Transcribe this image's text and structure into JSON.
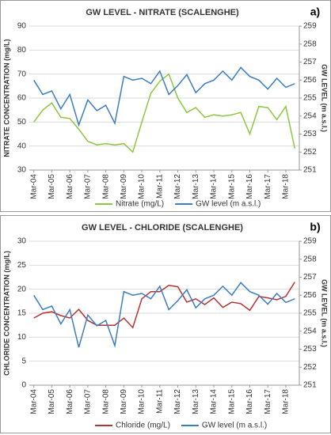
{
  "chart_data": [
    {
      "type": "line",
      "title": "GW  LEVEL - NITRATE (SCALENGHE)",
      "panel_label": "a)",
      "y_label": "NITRATE CONCENTRATION (mg/L)",
      "y2_label": "GW LEVEL (m a.s.l.)",
      "categories": [
        "Mar-04",
        null,
        "Mar-05",
        null,
        "Mar-06",
        null,
        "Mar-07",
        null,
        "Mar-08",
        null,
        "Mar-09",
        null,
        "Mar-10",
        null,
        "Mar-11",
        null,
        "Mar-12",
        null,
        "Mar-13",
        null,
        "Mar-14",
        null,
        "Mar-15",
        null,
        "Mar-16",
        null,
        "Mar-17",
        null,
        "Mar-18",
        null
      ],
      "ylim": [
        30,
        90
      ],
      "yticks": [
        30,
        40,
        50,
        60,
        70,
        80,
        90
      ],
      "y2lim": [
        251,
        259
      ],
      "y2ticks": [
        251,
        252,
        253,
        254,
        255,
        256,
        257,
        258,
        259
      ],
      "grid": true,
      "legend": "bottom",
      "series": [
        {
          "name": "Nitrate (mg/L)",
          "color": "#8dc63f",
          "values": [
            50,
            55,
            58,
            52,
            51.5,
            47,
            42,
            40.5,
            41,
            40.5,
            41,
            37.5,
            50,
            62,
            67,
            70,
            60,
            54,
            56,
            52,
            53,
            52.5,
            53,
            54,
            45,
            56.5,
            56,
            51,
            56.5,
            39
          ]
        },
        {
          "name": "GW level (m a.s.l.)",
          "color": "#3b7dc0",
          "axis": "y2",
          "values": [
            256.0,
            255.2,
            255.4,
            254.4,
            255.2,
            253.5,
            254.9,
            254.3,
            254.6,
            253.6,
            256.2,
            256.0,
            256.1,
            255.8,
            256.5,
            255.2,
            255.7,
            256.3,
            255.3,
            255.8,
            256.0,
            256.5,
            256.0,
            256.7,
            256.2,
            256.0,
            255.5,
            256.1,
            255.6,
            255.8
          ]
        }
      ]
    },
    {
      "type": "line",
      "title": "GW  LEVEL - CHLORIDE (SCALENGHE)",
      "panel_label": "b)",
      "y_label": "CHLORIDE CONCENTRATION (mg/L)",
      "y2_label": "GW LEVEL (m a.s.l.)",
      "categories": [
        "Mar-04",
        null,
        "Mar-05",
        null,
        "Mar-06",
        null,
        "Mar-07",
        null,
        "Mar-08",
        null,
        "Mar-09",
        null,
        "Mar-10",
        null,
        "Mar-11",
        null,
        "Mar-12",
        null,
        "Mar-13",
        null,
        "Mar-14",
        null,
        "Mar-15",
        null,
        "Mar-16",
        null,
        "Mar-17",
        null,
        "Mar-18",
        null
      ],
      "ylim": [
        0,
        30
      ],
      "yticks": [
        0,
        5,
        10,
        15,
        20,
        25,
        30
      ],
      "y2lim": [
        251,
        259
      ],
      "y2ticks": [
        251,
        252,
        253,
        254,
        255,
        256,
        257,
        258,
        259
      ],
      "grid": true,
      "legend": "bottom",
      "series": [
        {
          "name": "Chloride (mg/L)",
          "color": "#b83232",
          "values": [
            14,
            15,
            15.3,
            14.5,
            14,
            15.8,
            13.5,
            12.5,
            12.5,
            12.5,
            14,
            12,
            18,
            19.5,
            19.5,
            20.8,
            20.5,
            17.3,
            18,
            16.8,
            18.2,
            16.2,
            17.3,
            17,
            15.6,
            18.5,
            18.2,
            17.8,
            18.5,
            21.5
          ]
        },
        {
          "name": "GW level (m a.s.l.)",
          "color": "#3b7dc0",
          "axis": "y2",
          "values": [
            256.0,
            255.2,
            255.4,
            254.4,
            255.2,
            253.1,
            254.9,
            254.3,
            254.6,
            253.2,
            256.2,
            256.0,
            256.1,
            255.8,
            256.5,
            255.2,
            255.7,
            256.3,
            255.3,
            255.8,
            256.0,
            256.5,
            256.0,
            256.7,
            256.2,
            256.0,
            255.5,
            256.1,
            255.6,
            255.8
          ]
        }
      ]
    }
  ]
}
